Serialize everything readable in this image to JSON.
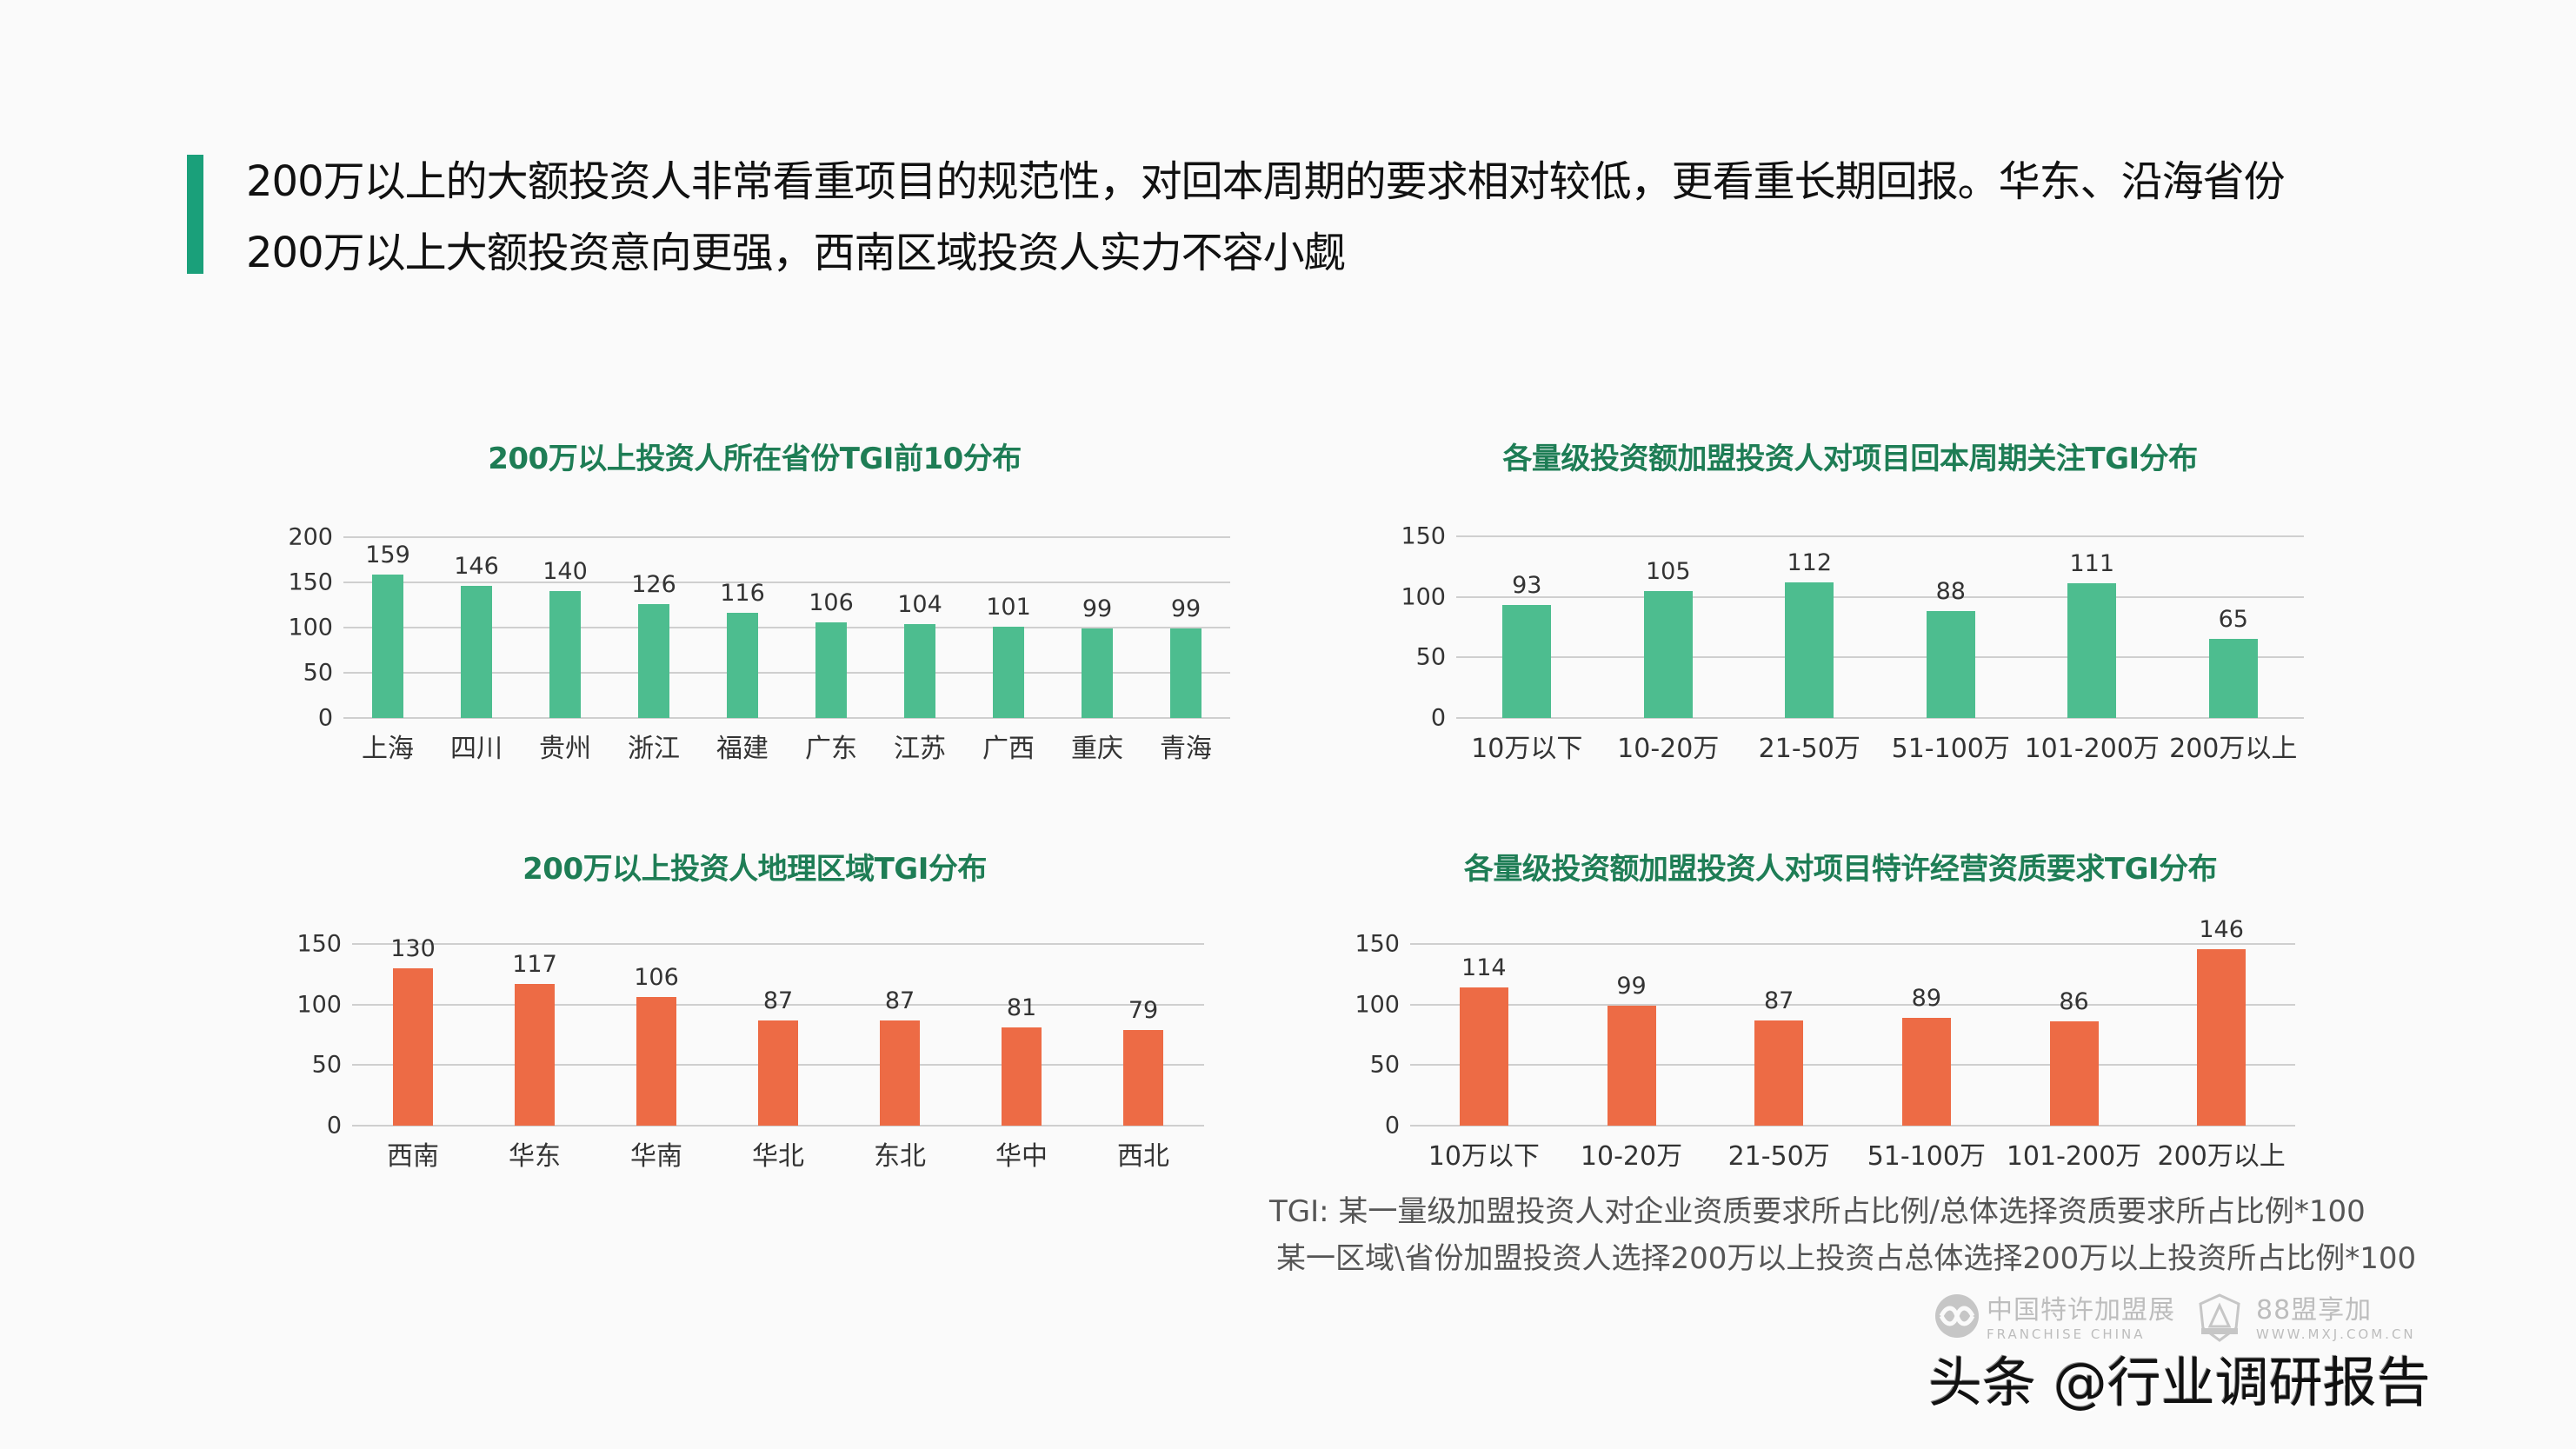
{
  "headline": {
    "line1": "200万以上的大额投资人非常看重项目的规范性，对回本周期的要求相对较低，更看重长期回报。华东、沿海省份",
    "line2": "200万以上大额投资意向更强，西南区域投资人实力不容小觑"
  },
  "colors": {
    "accent_bar": "#1aa07a",
    "title_green": "#1e7d55",
    "bar_green": "#4dbd8f",
    "bar_orange": "#ed6b45",
    "gridline": "#cfcfcf"
  },
  "chart_data": [
    {
      "type": "bar",
      "title": "200万以上投资人所在省份TGI前10分布",
      "categories": [
        "上海",
        "四川",
        "贵州",
        "浙江",
        "福建",
        "广东",
        "江苏",
        "广西",
        "重庆",
        "青海"
      ],
      "values": [
        159,
        146,
        140,
        126,
        116,
        106,
        104,
        101,
        99,
        99
      ],
      "yticks": [
        0,
        50,
        100,
        150,
        200
      ],
      "ylim": [
        0,
        200
      ],
      "color": "#4dbd8f",
      "xlabel": "",
      "ylabel": "",
      "grid": true,
      "legend": "none"
    },
    {
      "type": "bar",
      "title": "各量级投资额加盟投资人对项目回本周期关注TGI分布",
      "categories": [
        "10万以下",
        "10-20万",
        "21-50万",
        "51-100万",
        "101-200万",
        "200万以上"
      ],
      "values": [
        93,
        105,
        112,
        88,
        111,
        65
      ],
      "yticks": [
        0,
        50,
        100,
        150
      ],
      "ylim": [
        0,
        150
      ],
      "color": "#4dbd8f",
      "xlabel": "",
      "ylabel": "",
      "grid": true,
      "legend": "none"
    },
    {
      "type": "bar",
      "title": "200万以上投资人地理区域TGI分布",
      "categories": [
        "西南",
        "华东",
        "华南",
        "华北",
        "东北",
        "华中",
        "西北"
      ],
      "values": [
        130,
        117,
        106,
        87,
        87,
        81,
        79
      ],
      "yticks": [
        0,
        50,
        100,
        150
      ],
      "ylim": [
        0,
        150
      ],
      "color": "#ed6b45",
      "xlabel": "",
      "ylabel": "",
      "grid": true,
      "legend": "none"
    },
    {
      "type": "bar",
      "title": "各量级投资额加盟投资人对项目特许经营资质要求TGI分布",
      "categories": [
        "10万以下",
        "10-20万",
        "21-50万",
        "51-100万",
        "101-200万",
        "200万以上"
      ],
      "values": [
        114,
        99,
        87,
        89,
        86,
        146
      ],
      "yticks": [
        0,
        50,
        100,
        150
      ],
      "ylim": [
        0,
        150
      ],
      "color": "#ed6b45",
      "xlabel": "",
      "ylabel": "",
      "grid": true,
      "legend": "none"
    }
  ],
  "footnotes": {
    "line1": "TGI: 某一量级加盟投资人对企业资质要求所占比例/总体选择资质要求所占比例*100",
    "line2": "某一区域\\省份加盟投资人选择200万以上投资占总体选择200万以上投资所占比例*100"
  },
  "logos": {
    "franchise_china_cn": "中国特许加盟展",
    "franchise_china_en": "FRANCHISE CHINA",
    "mxj_cn": "88盟享加",
    "mxj_en": "WWW.MXJ.COM.CN"
  },
  "watermark": "头条 @行业调研报告"
}
